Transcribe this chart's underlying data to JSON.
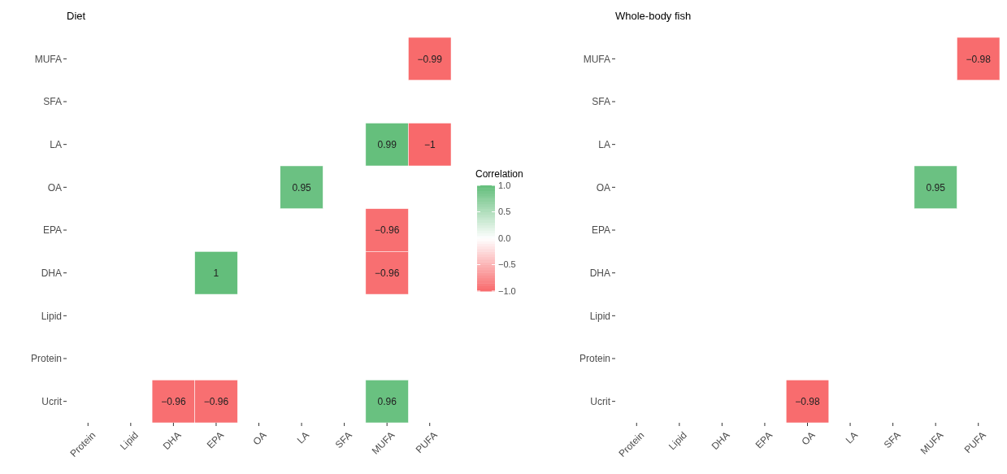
{
  "chart_data": [
    {
      "type": "heatmap",
      "title": "Diet",
      "categories": [
        "Protein",
        "Lipid",
        "DHA",
        "EPA",
        "OA",
        "LA",
        "SFA",
        "MUFA",
        "PUFA"
      ],
      "y_categories": [
        "MUFA",
        "SFA",
        "LA",
        "OA",
        "EPA",
        "DHA",
        "Lipid",
        "Protein",
        "Ucrit"
      ],
      "cells": [
        [
          null,
          null,
          null,
          null,
          null,
          null,
          null,
          null,
          -0.99
        ],
        [
          null,
          null,
          null,
          null,
          null,
          null,
          null,
          null,
          null
        ],
        [
          null,
          null,
          null,
          null,
          null,
          null,
          null,
          0.99,
          -1
        ],
        [
          null,
          null,
          null,
          null,
          null,
          0.95,
          null,
          null,
          null
        ],
        [
          null,
          null,
          null,
          null,
          null,
          null,
          null,
          -0.96,
          null
        ],
        [
          null,
          null,
          null,
          1,
          null,
          null,
          null,
          -0.96,
          null
        ],
        [
          null,
          null,
          null,
          null,
          null,
          null,
          null,
          null,
          null
        ],
        [
          null,
          null,
          null,
          null,
          null,
          null,
          null,
          null,
          null
        ],
        [
          null,
          null,
          -0.96,
          -0.96,
          null,
          null,
          null,
          0.96,
          null
        ]
      ],
      "data_labels": true,
      "clabel": "Correlation",
      "clim": [
        -1,
        1
      ],
      "cticks": [
        {
          "value": -1,
          "label": "−1.0"
        },
        {
          "value": -0.5,
          "label": "−0.5"
        },
        {
          "value": 0,
          "label": "0.0"
        },
        0.5,
        {
          "value": 1,
          "label": "1.0"
        }
      ]
    },
    {
      "type": "heatmap",
      "title": "Whole-body fish",
      "categories": [
        "Protein",
        "Lipid",
        "DHA",
        "EPA",
        "OA",
        "LA",
        "SFA",
        "MUFA",
        "PUFA"
      ],
      "y_categories": [
        "MUFA",
        "SFA",
        "LA",
        "OA",
        "EPA",
        "DHA",
        "Lipid",
        "Protein",
        "Ucrit"
      ],
      "cells": [
        [
          null,
          null,
          null,
          null,
          null,
          null,
          null,
          null,
          -0.98
        ],
        [
          null,
          null,
          null,
          null,
          null,
          null,
          null,
          null,
          null
        ],
        [
          null,
          null,
          null,
          null,
          null,
          null,
          null,
          null,
          null
        ],
        [
          null,
          null,
          null,
          null,
          null,
          null,
          null,
          0.95,
          null
        ],
        [
          null,
          null,
          null,
          null,
          null,
          null,
          null,
          null,
          null
        ],
        [
          null,
          null,
          null,
          null,
          null,
          null,
          null,
          null,
          null
        ],
        [
          null,
          null,
          null,
          null,
          null,
          null,
          null,
          null,
          null
        ],
        [
          null,
          null,
          null,
          null,
          null,
          null,
          null,
          null,
          null
        ],
        [
          null,
          null,
          null,
          null,
          -0.98,
          null,
          null,
          null,
          null
        ]
      ],
      "data_labels": true
    }
  ]
}
